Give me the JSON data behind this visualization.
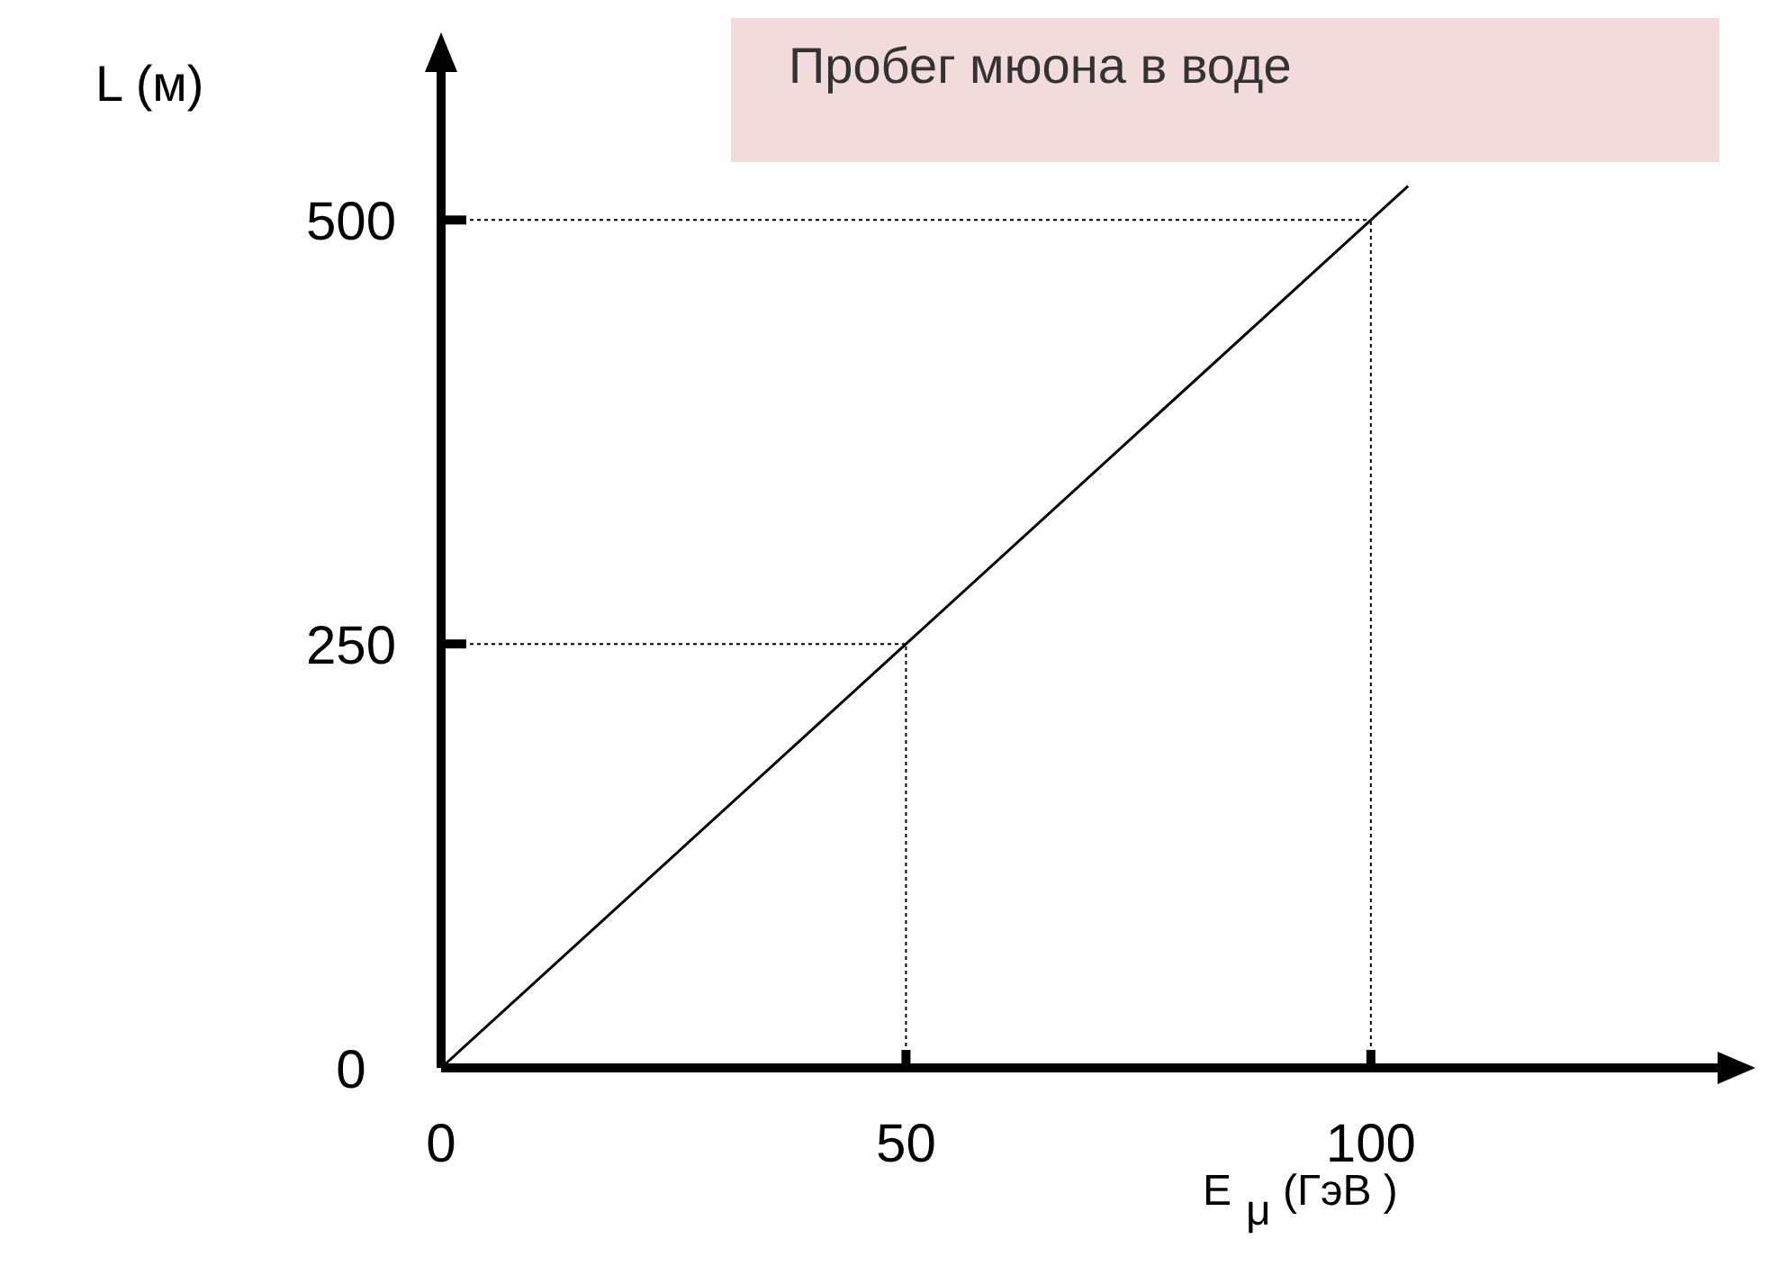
{
  "chart_data": {
    "type": "line",
    "title": "Пробег мюона в воде",
    "xlabel": "E$_{μ}$ (ГэВ )",
    "ylabel": "L (м)",
    "x": [
      0,
      50,
      100,
      104
    ],
    "series": [
      {
        "color": "#000000",
        "values": [
          0,
          250,
          500,
          520
        ]
      }
    ],
    "xlim": [
      0,
      140
    ],
    "ylim": [
      0,
      600
    ],
    "xticks": [
      0,
      50,
      100
    ],
    "yticks": [
      0,
      250,
      500
    ],
    "ref_lines": [
      {
        "axis": "x",
        "value": 50,
        "line_style": "dotted"
      },
      {
        "axis": "x",
        "value": 100,
        "line_style": "dotted"
      },
      {
        "axis": "y",
        "value": 250,
        "line_style": "dotted"
      },
      {
        "axis": "y",
        "value": 500,
        "line_style": "dotted"
      }
    ],
    "grid": false,
    "marker": "none",
    "line_style": "solid"
  }
}
